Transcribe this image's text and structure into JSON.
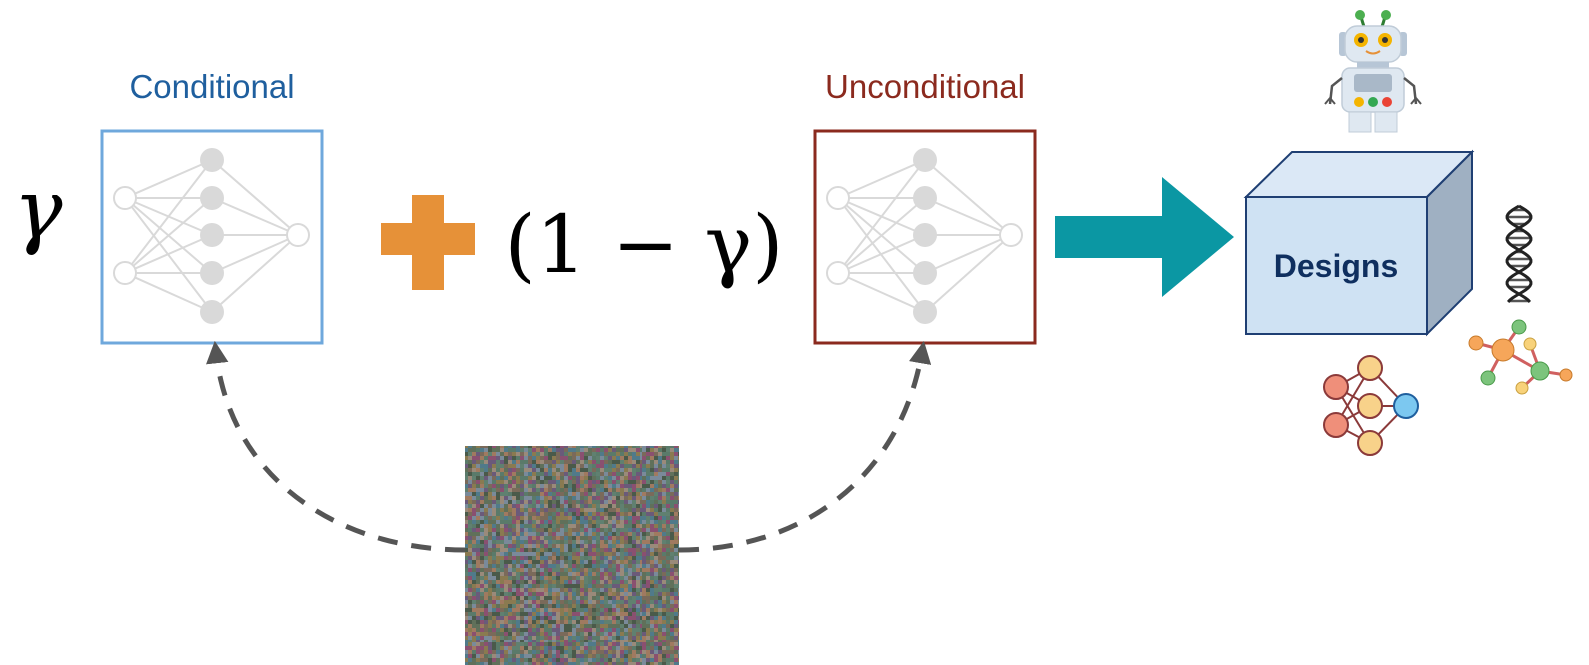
{
  "labels": {
    "conditional": "Conditional",
    "unconditional": "Unconditional",
    "designs": "Designs"
  },
  "formula": {
    "gamma": "γ",
    "plus": "+",
    "one_minus_gamma": "(1 − γ)"
  },
  "colors": {
    "conditional": "#1f5f9e",
    "conditional_box": "#6fa8dc",
    "unconditional": "#8b2a1e",
    "plus": "#e69138",
    "arrow": "#0b97a3",
    "box_face": "#cfe2f3",
    "box_side": "#9fb0c2",
    "box_edge": "#1f3f73",
    "dashed": "#555555",
    "network": "#d9d9d9"
  },
  "icons": {
    "robot": "robot-icon",
    "dna": "dna-helix-icon",
    "molecule": "molecule-icon",
    "network": "neural-network-icon",
    "noise": "noise-image-icon"
  }
}
